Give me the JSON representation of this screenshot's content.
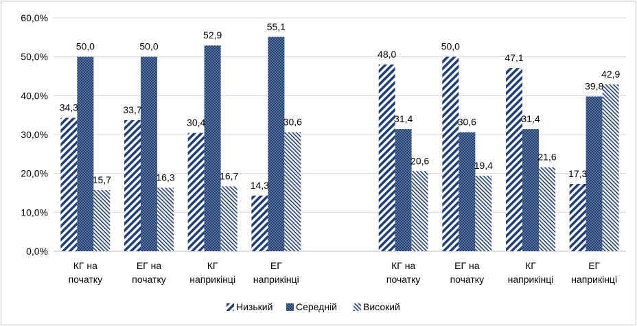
{
  "chart_data": {
    "type": "bar",
    "categories": [
      "КГ на|початку",
      "ЕГ на|початку",
      "КГ|наприкінці",
      "ЕГ|наприкінці",
      "",
      "КГ на|початку",
      "ЕГ на|початку",
      "КГ|наприкінці",
      "ЕГ|наприкінці"
    ],
    "series": [
      {
        "name": "Низький",
        "values": [
          34.3,
          33.7,
          30.4,
          14.3,
          null,
          48.0,
          50.0,
          47.1,
          17.3
        ],
        "labels": [
          "34,3",
          "33,7",
          "30,4",
          "14,3",
          "",
          "48,0",
          "50,0",
          "47,1",
          "17,3"
        ]
      },
      {
        "name": "Середній",
        "values": [
          50.0,
          50.0,
          52.9,
          55.1,
          null,
          31.4,
          30.6,
          31.4,
          39.8
        ],
        "labels": [
          "50,0",
          "50,0",
          "52,9",
          "55,1",
          "",
          "31,4",
          "30,6",
          "31,4",
          "39,8"
        ]
      },
      {
        "name": "Високий",
        "values": [
          15.7,
          16.3,
          16.7,
          30.6,
          null,
          20.6,
          19.4,
          21.6,
          42.9
        ],
        "labels": [
          "15,7",
          "16,3",
          "16,7",
          "30,6",
          "",
          "20,6",
          "19,4",
          "21,6",
          "42,9"
        ]
      }
    ],
    "yticks": [
      "0,0%",
      "10,0%",
      "20,0%",
      "30,0%",
      "40,0%",
      "50,0%",
      "60,0%"
    ],
    "ylim": [
      0,
      60
    ],
    "grid": true,
    "legend": "bottom",
    "colors": {
      "primary": "#1f3f74",
      "gridline": "#d9d9d9",
      "border": "#bfbfbf"
    }
  }
}
